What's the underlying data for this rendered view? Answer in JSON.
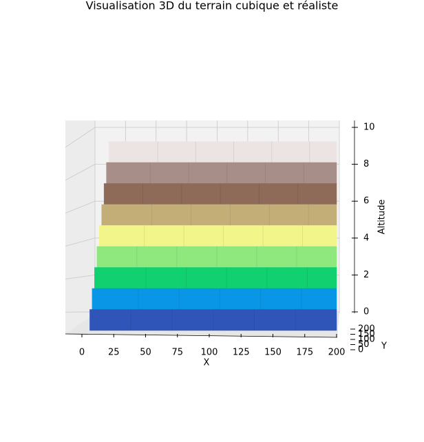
{
  "chart_data": {
    "type": "terrace3d",
    "title": "Visualisation 3D du terrain cubique et réaliste",
    "xlabel": "X",
    "ylabel": "Y",
    "zlabel": "Altitude",
    "xlim": [
      0,
      200
    ],
    "xticks": [
      0,
      25,
      50,
      75,
      100,
      125,
      150,
      175,
      200
    ],
    "ylim": [
      0,
      200
    ],
    "yticks": [
      0,
      50,
      100,
      150,
      200
    ],
    "zlim": [
      0,
      10
    ],
    "zticks": [
      0,
      2,
      4,
      6,
      8,
      10
    ],
    "grid": true,
    "terraces": [
      {
        "z": 1,
        "color": "#2f55b8"
      },
      {
        "z": 2,
        "color": "#0a96e6"
      },
      {
        "z": 3,
        "color": "#10d070"
      },
      {
        "z": 4,
        "color": "#8ee87e"
      },
      {
        "z": 5,
        "color": "#f2f58a"
      },
      {
        "z": 6,
        "color": "#c4ae78"
      },
      {
        "z": 7,
        "color": "#8e6a58"
      },
      {
        "z": 8,
        "color": "#a88e88"
      },
      {
        "z": 9,
        "color": "#ece4e2"
      }
    ]
  }
}
